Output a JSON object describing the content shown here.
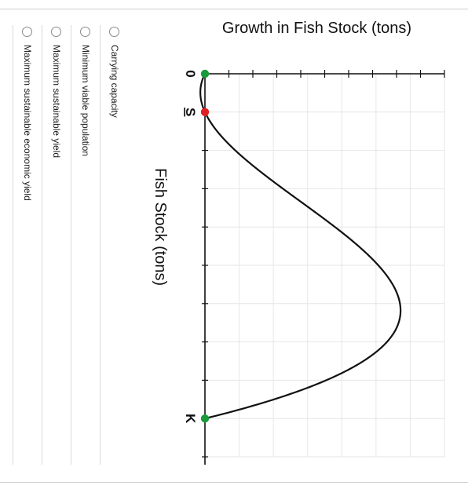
{
  "chart_data": {
    "type": "line",
    "title": "Growth in Fish Stock (tons)",
    "xlabel": "Fish Stock (tons)",
    "ylabel": "",
    "grid": true,
    "tick_labels": {
      "zero": "0",
      "s": "S",
      "k": "K"
    },
    "series": [
      {
        "curve": "growth"
      }
    ],
    "points": [
      {
        "label": "0",
        "x": 0,
        "y": 0,
        "color": "#1a9a3a"
      },
      {
        "label": "S",
        "x": 1,
        "y": 0,
        "color": "#e02020"
      },
      {
        "label": "K",
        "x": 9,
        "y": 0,
        "color": "#1a9a3a"
      }
    ],
    "peak": {
      "x": 4,
      "y": 3.8
    },
    "xlim": [
      0,
      10
    ],
    "ylim": [
      -0.8,
      7
    ]
  },
  "question": {
    "options": [
      {
        "label": "Carrying capacity"
      },
      {
        "label": "Minimum viable population"
      },
      {
        "label": "Maximum sustainable yield"
      },
      {
        "label": "Maximum sustainable economic yield"
      }
    ]
  }
}
